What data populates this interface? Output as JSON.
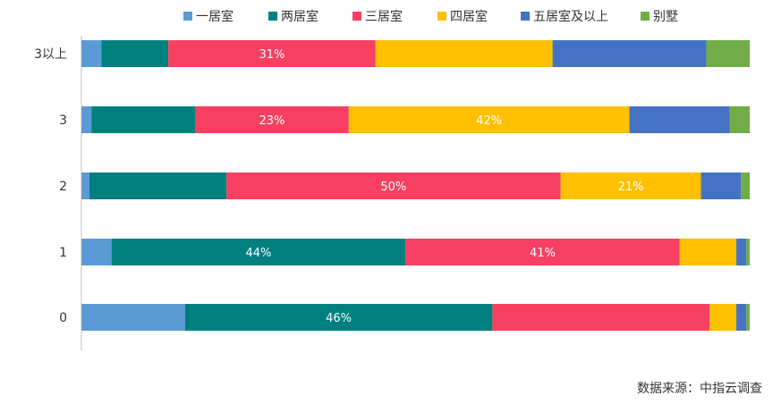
{
  "source_note": "数据来源：中指云调查",
  "chart_data": {
    "type": "bar",
    "orientation": "horizontal",
    "stacked": "percent",
    "legend_position": "top",
    "grid": false,
    "xlim": [
      0,
      100
    ],
    "categories": [
      "3以上",
      "3",
      "2",
      "1",
      "0"
    ],
    "series": [
      {
        "name": "一居室",
        "color": "#5b9bd5",
        "values": [
          3,
          1.5,
          1.2,
          4.5,
          15.5
        ]
      },
      {
        "name": "两居室",
        "color": "#007f7f",
        "values": [
          10,
          15.5,
          20.5,
          44,
          46
        ]
      },
      {
        "name": "三居室",
        "color": "#f74061",
        "values": [
          31,
          23,
          50,
          41,
          32.5
        ]
      },
      {
        "name": "四居室",
        "color": "#ffc000",
        "values": [
          26.5,
          42,
          21,
          8.5,
          4
        ]
      },
      {
        "name": "五居室及以上",
        "color": "#4472c4",
        "values": [
          23,
          15,
          6,
          1.5,
          1.5
        ]
      },
      {
        "name": "别墅",
        "color": "#70ad47",
        "values": [
          6.5,
          3,
          1.3,
          0.5,
          0.5
        ]
      }
    ],
    "data_labels": [
      {
        "category": "3以上",
        "series": "三居室",
        "text": "31%"
      },
      {
        "category": "3",
        "series": "三居室",
        "text": "23%"
      },
      {
        "category": "3",
        "series": "四居室",
        "text": "42%"
      },
      {
        "category": "2",
        "series": "三居室",
        "text": "50%"
      },
      {
        "category": "2",
        "series": "四居室",
        "text": "21%"
      },
      {
        "category": "1",
        "series": "两居室",
        "text": "44%"
      },
      {
        "category": "1",
        "series": "三居室",
        "text": "41%"
      },
      {
        "category": "0",
        "series": "两居室",
        "text": "46%"
      }
    ]
  }
}
